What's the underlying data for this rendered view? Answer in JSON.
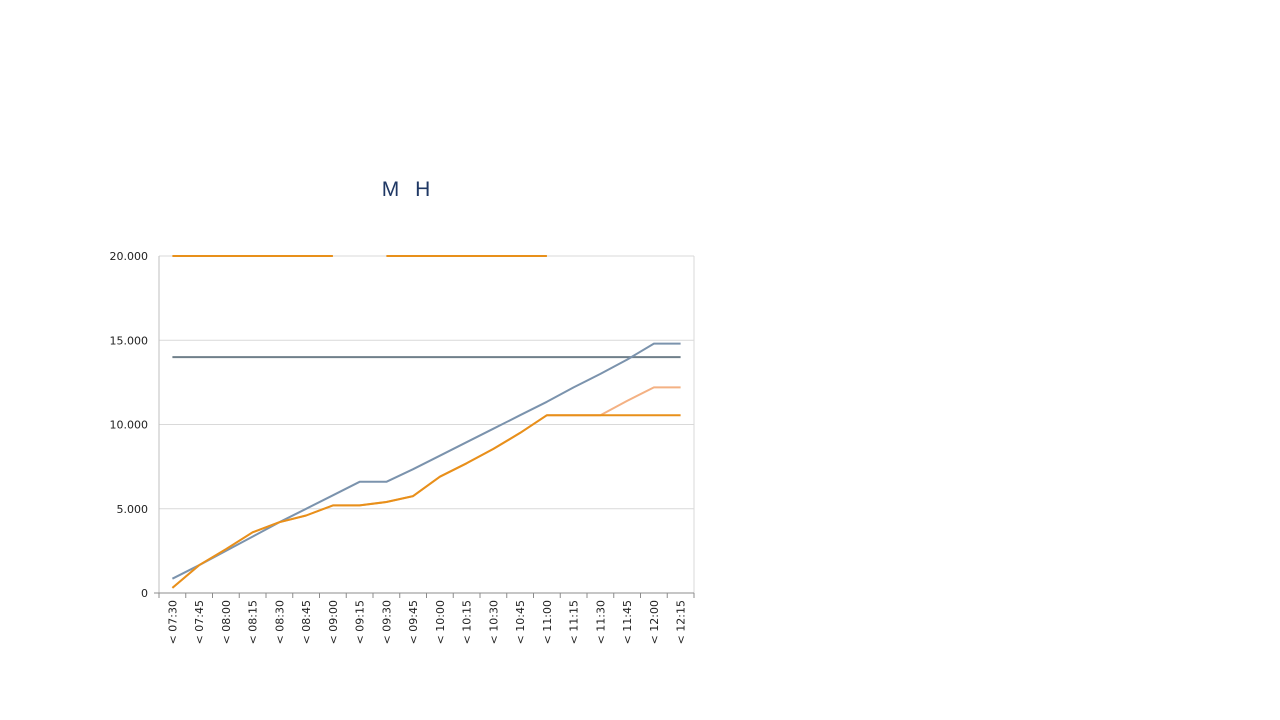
{
  "chart_data": {
    "type": "line",
    "title": "M H",
    "xlabel": "",
    "ylabel": "",
    "categories": [
      "< 07:30",
      "< 07:45",
      "< 08:00",
      "< 08:15",
      "< 08:30",
      "< 08:45",
      "< 09:00",
      "< 09:15",
      "< 09:30",
      "< 09:45",
      "< 10:00",
      "< 10:15",
      "< 10:30",
      "< 10:45",
      "< 11:00",
      "< 11:15",
      "< 11:30",
      "< 11:45",
      "< 12:00",
      "< 12:15"
    ],
    "y_ticks": [
      "0",
      "5.000",
      "10.000",
      "15.000",
      "20.000"
    ],
    "ylim": [
      0,
      20000
    ],
    "grid": true,
    "legend": "none",
    "series": [
      {
        "color": "#e8901a",
        "width": 2,
        "values": [
          20000,
          20000,
          20000,
          20000,
          20000,
          20000,
          20000,
          null,
          20000,
          20000,
          20000,
          20000,
          20000,
          20000,
          20000,
          null,
          null,
          null,
          null,
          null
        ]
      },
      {
        "color": "#6f7f8a",
        "width": 2,
        "values": [
          14000,
          14000,
          14000,
          14000,
          14000,
          14000,
          14000,
          14000,
          14000,
          14000,
          14000,
          14000,
          14000,
          14000,
          14000,
          14000,
          14000,
          14000,
          14000,
          14000
        ]
      },
      {
        "color": "#7b93ad",
        "width": 2,
        "values": [
          850,
          1650,
          2500,
          3350,
          4200,
          5000,
          5800,
          6600,
          6600,
          7350,
          8150,
          8950,
          9750,
          10550,
          11350,
          12200,
          13000,
          13850,
          14800,
          14800
        ]
      },
      {
        "color": "#f4b183",
        "width": 2,
        "values": [
          300,
          1650,
          2600,
          3600,
          4200,
          4600,
          5200,
          5200,
          5400,
          5750,
          6900,
          7700,
          8550,
          9500,
          10550,
          10550,
          10550,
          11400,
          12200,
          12200
        ]
      },
      {
        "color": "#e8901a",
        "width": 2,
        "values": [
          300,
          1650,
          2600,
          3600,
          4200,
          4600,
          5200,
          5200,
          5400,
          5750,
          6900,
          7700,
          8550,
          9500,
          10550,
          10550,
          10550,
          10550,
          10550,
          10550
        ]
      }
    ]
  }
}
